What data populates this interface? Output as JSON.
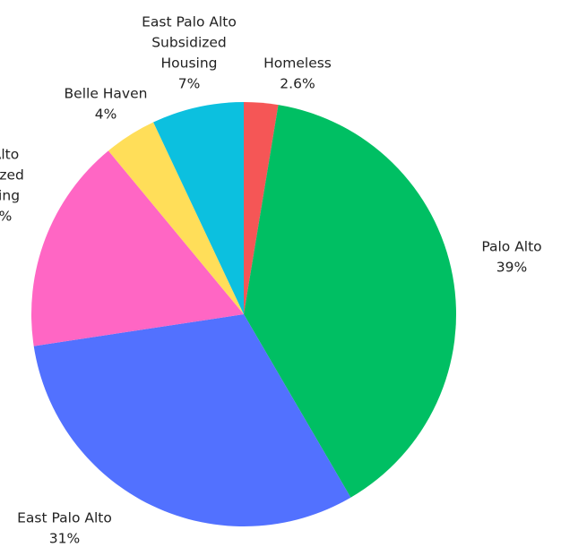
{
  "chart_data": {
    "type": "pie",
    "start_angle": "12 o'clock",
    "direction": "clockwise",
    "slices": [
      {
        "name": "Homeless",
        "label_lines": [
          "Homeless"
        ],
        "value": 2.6,
        "value_label": "2.6%",
        "color": "#F55656"
      },
      {
        "name": "Palo Alto",
        "label_lines": [
          "Palo Alto"
        ],
        "value": 39,
        "value_label": "39%",
        "color": "#00BF63"
      },
      {
        "name": "East Palo Alto",
        "label_lines": [
          "East Palo Alto"
        ],
        "value": 31,
        "value_label": "31%",
        "color": "#5271FF"
      },
      {
        "name": "Palo Alto Subsidized Housing",
        "label_lines": [
          "Alto",
          "dized",
          "sing",
          "%"
        ],
        "value": 16.4,
        "value_label": "",
        "color": "#FF66C4"
      },
      {
        "name": "Belle Haven",
        "label_lines": [
          "Belle Haven"
        ],
        "value": 4,
        "value_label": "4%",
        "color": "#FFDE59"
      },
      {
        "name": "East Palo Alto Subsidized Housing",
        "label_lines": [
          "East Palo Alto",
          "Subsidized",
          "Housing"
        ],
        "value": 7,
        "value_label": "7%",
        "color": "#0CC0DF"
      }
    ]
  }
}
